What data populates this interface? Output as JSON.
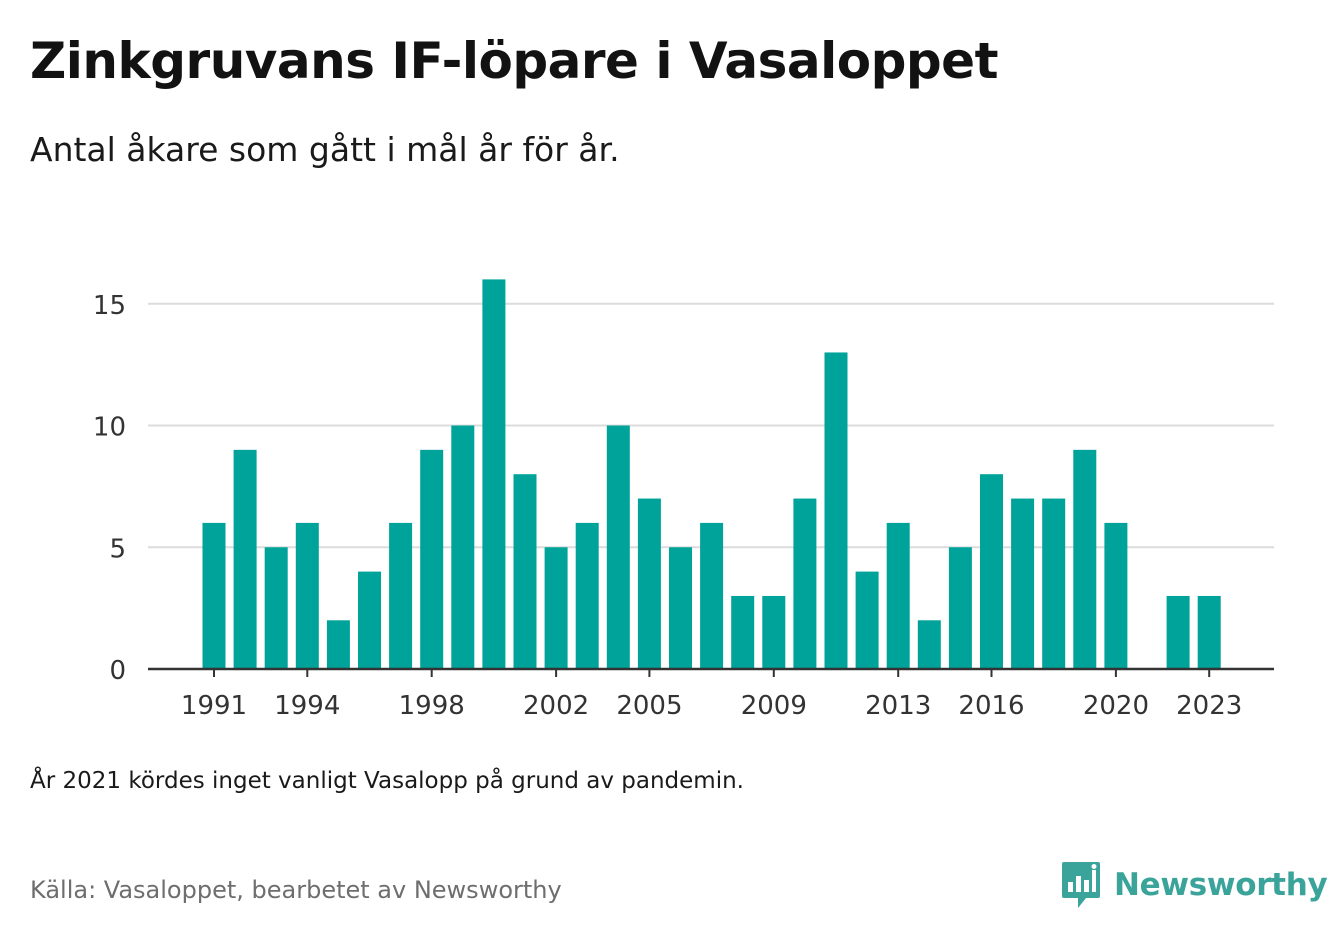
{
  "header": {
    "title": "Zinkgruvans IF-löpare i Vasaloppet",
    "subtitle": "Antal åkare som gått i mål år för år."
  },
  "chart_data": {
    "type": "bar",
    "x": [
      1991,
      1992,
      1993,
      1994,
      1995,
      1996,
      1997,
      1998,
      1999,
      2000,
      2001,
      2002,
      2003,
      2004,
      2005,
      2006,
      2007,
      2008,
      2009,
      2010,
      2011,
      2012,
      2013,
      2014,
      2015,
      2016,
      2017,
      2018,
      2019,
      2020,
      2021,
      2022,
      2023
    ],
    "values": [
      6,
      9,
      5,
      6,
      2,
      4,
      6,
      9,
      10,
      16,
      8,
      5,
      6,
      10,
      7,
      5,
      6,
      3,
      3,
      7,
      13,
      4,
      6,
      2,
      5,
      8,
      7,
      7,
      9,
      6,
      null,
      3,
      3
    ],
    "xticks": [
      1991,
      1994,
      1998,
      2002,
      2005,
      2009,
      2013,
      2016,
      2020,
      2023
    ],
    "yticks": [
      0,
      5,
      10,
      15
    ],
    "ylim": [
      0,
      16
    ],
    "grid": "horizontal",
    "bar_color": "#00a39a"
  },
  "footer": {
    "note": "År 2021 kördes inget vanligt Vasalopp på grund av pandemin.",
    "source": "Källa: Vasaloppet, bearbetet av Newsworthy",
    "brand": "Newsworthy",
    "brand_icon": "newsworthy-logo-icon",
    "brand_color": "#3aa39a"
  }
}
